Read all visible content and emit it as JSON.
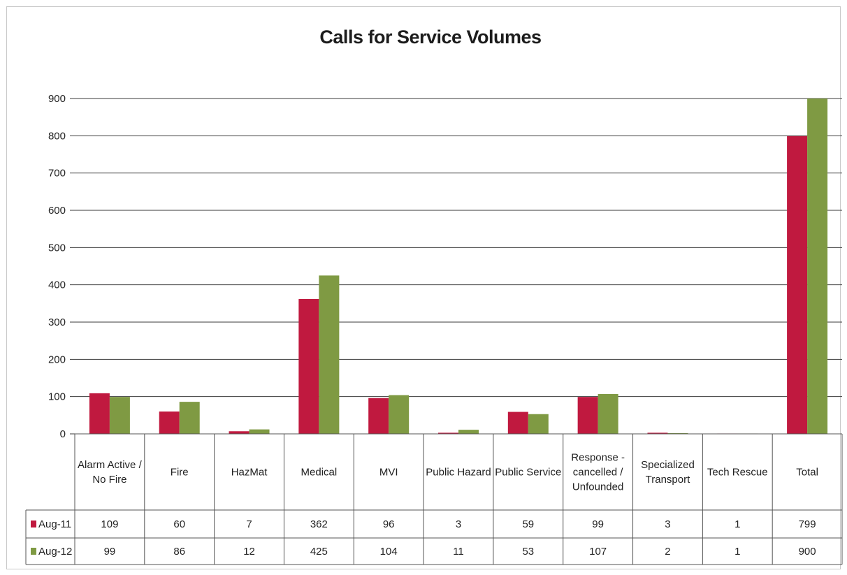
{
  "chart_data": {
    "type": "bar",
    "title": "Calls for Service Volumes",
    "categories": [
      [
        "Alarm Active /",
        "No Fire"
      ],
      [
        "Fire"
      ],
      [
        "HazMat"
      ],
      [
        "Medical"
      ],
      [
        "MVI"
      ],
      [
        "Public Hazard"
      ],
      [
        "Public Service"
      ],
      [
        "Response -",
        "cancelled /",
        "Unfounded"
      ],
      [
        "Specialized",
        "Transport"
      ],
      [
        "Tech Rescue"
      ],
      [
        "Total"
      ]
    ],
    "series": [
      {
        "name": "Aug-11",
        "color": "#c0193f",
        "values": [
          109,
          60,
          7,
          362,
          96,
          3,
          59,
          99,
          3,
          1,
          799
        ]
      },
      {
        "name": "Aug-12",
        "color": "#7f9a43",
        "values": [
          99,
          86,
          12,
          425,
          104,
          11,
          53,
          107,
          2,
          1,
          900
        ]
      }
    ],
    "ylim": [
      0,
      900
    ],
    "yticks": [
      0,
      100,
      200,
      300,
      400,
      500,
      600,
      700,
      800,
      900
    ],
    "grid": true,
    "legend": "data-table"
  }
}
